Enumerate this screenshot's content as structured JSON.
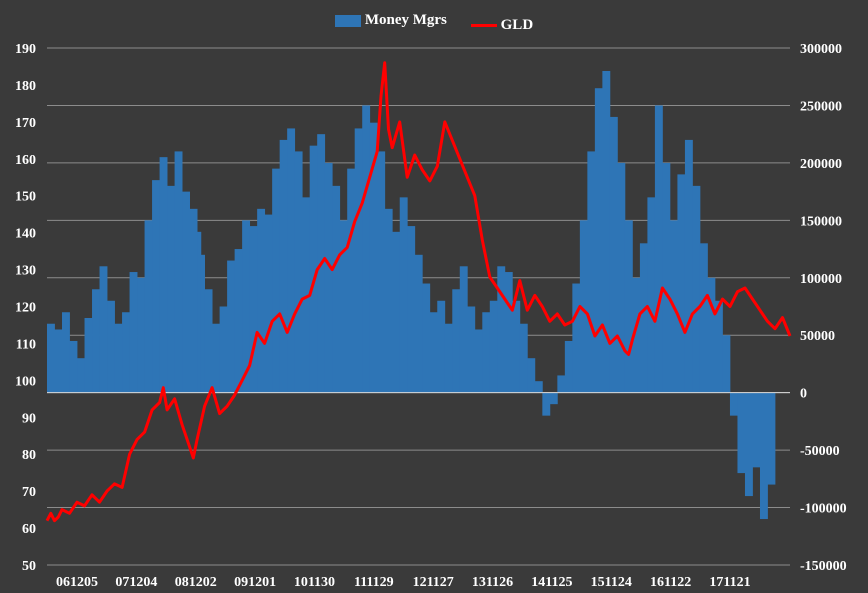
{
  "chart_data": {
    "type": "bar+line",
    "legend": [
      {
        "name": "Money Mgrs",
        "kind": "bar",
        "color": "#2e75b6"
      },
      {
        "name": "GLD",
        "kind": "line",
        "color": "#ff0000"
      }
    ],
    "left_axis": {
      "min": 50,
      "max": 190,
      "ticks": [
        "50",
        "60",
        "70",
        "80",
        "90",
        "100",
        "110",
        "120",
        "130",
        "140",
        "150",
        "160",
        "170",
        "180",
        "190"
      ]
    },
    "right_axis": {
      "min": -150000,
      "max": 300000,
      "ticks": [
        "-150000",
        "-100000",
        "-50000",
        "0",
        "50000",
        "100000",
        "150000",
        "200000",
        "250000",
        "300000"
      ]
    },
    "x_tick_labels": [
      "061205",
      "071204",
      "081202",
      "091201",
      "101130",
      "111129",
      "121127",
      "131126",
      "141125",
      "151124",
      "161122",
      "171121"
    ],
    "series": [
      {
        "name": "Money Mgrs",
        "axis": "right",
        "points": [
          [
            0,
            60000
          ],
          [
            2,
            55000
          ],
          [
            4,
            70000
          ],
          [
            6,
            45000
          ],
          [
            8,
            30000
          ],
          [
            10,
            65000
          ],
          [
            12,
            90000
          ],
          [
            14,
            110000
          ],
          [
            16,
            80000
          ],
          [
            18,
            60000
          ],
          [
            20,
            70000
          ],
          [
            22,
            105000
          ],
          [
            24,
            100000
          ],
          [
            26,
            150000
          ],
          [
            28,
            185000
          ],
          [
            30,
            205000
          ],
          [
            32,
            180000
          ],
          [
            34,
            210000
          ],
          [
            36,
            175000
          ],
          [
            38,
            160000
          ],
          [
            40,
            140000
          ],
          [
            41,
            120000
          ],
          [
            42,
            90000
          ],
          [
            44,
            60000
          ],
          [
            46,
            75000
          ],
          [
            48,
            115000
          ],
          [
            50,
            125000
          ],
          [
            52,
            150000
          ],
          [
            54,
            145000
          ],
          [
            56,
            160000
          ],
          [
            58,
            155000
          ],
          [
            60,
            195000
          ],
          [
            62,
            220000
          ],
          [
            64,
            230000
          ],
          [
            66,
            210000
          ],
          [
            68,
            170000
          ],
          [
            70,
            215000
          ],
          [
            72,
            225000
          ],
          [
            74,
            200000
          ],
          [
            76,
            180000
          ],
          [
            78,
            150000
          ],
          [
            80,
            195000
          ],
          [
            82,
            230000
          ],
          [
            84,
            250000
          ],
          [
            86,
            235000
          ],
          [
            88,
            210000
          ],
          [
            90,
            160000
          ],
          [
            92,
            140000
          ],
          [
            94,
            170000
          ],
          [
            96,
            145000
          ],
          [
            98,
            120000
          ],
          [
            100,
            95000
          ],
          [
            102,
            70000
          ],
          [
            104,
            80000
          ],
          [
            106,
            60000
          ],
          [
            108,
            90000
          ],
          [
            110,
            110000
          ],
          [
            112,
            75000
          ],
          [
            114,
            55000
          ],
          [
            116,
            70000
          ],
          [
            118,
            80000
          ],
          [
            120,
            110000
          ],
          [
            122,
            105000
          ],
          [
            124,
            80000
          ],
          [
            126,
            60000
          ],
          [
            128,
            30000
          ],
          [
            130,
            10000
          ],
          [
            132,
            -20000
          ],
          [
            134,
            -10000
          ],
          [
            136,
            15000
          ],
          [
            138,
            45000
          ],
          [
            140,
            95000
          ],
          [
            142,
            150000
          ],
          [
            144,
            210000
          ],
          [
            146,
            265000
          ],
          [
            148,
            280000
          ],
          [
            150,
            240000
          ],
          [
            152,
            200000
          ],
          [
            154,
            150000
          ],
          [
            156,
            100000
          ],
          [
            158,
            130000
          ],
          [
            160,
            170000
          ],
          [
            162,
            250000
          ],
          [
            164,
            200000
          ],
          [
            166,
            150000
          ],
          [
            168,
            190000
          ],
          [
            170,
            220000
          ],
          [
            172,
            180000
          ],
          [
            174,
            130000
          ],
          [
            176,
            100000
          ],
          [
            178,
            80000
          ],
          [
            180,
            50000
          ],
          [
            182,
            -20000
          ],
          [
            184,
            -70000
          ],
          [
            186,
            -90000
          ],
          [
            188,
            -65000
          ],
          [
            190,
            -110000
          ],
          [
            192,
            -80000
          ]
        ]
      },
      {
        "name": "GLD",
        "axis": "left",
        "points": [
          [
            0,
            62
          ],
          [
            1,
            64
          ],
          [
            2,
            62
          ],
          [
            3,
            63
          ],
          [
            4,
            65
          ],
          [
            6,
            64
          ],
          [
            8,
            67
          ],
          [
            10,
            66
          ],
          [
            12,
            69
          ],
          [
            14,
            67
          ],
          [
            16,
            70
          ],
          [
            18,
            72
          ],
          [
            20,
            71
          ],
          [
            22,
            80
          ],
          [
            24,
            84
          ],
          [
            26,
            86
          ],
          [
            28,
            92
          ],
          [
            30,
            94
          ],
          [
            31,
            98
          ],
          [
            32,
            92
          ],
          [
            34,
            95
          ],
          [
            36,
            88
          ],
          [
            38,
            82
          ],
          [
            39,
            79
          ],
          [
            40,
            84
          ],
          [
            42,
            93
          ],
          [
            44,
            98
          ],
          [
            46,
            91
          ],
          [
            48,
            93
          ],
          [
            50,
            96
          ],
          [
            52,
            100
          ],
          [
            54,
            104
          ],
          [
            56,
            113
          ],
          [
            58,
            110
          ],
          [
            60,
            116
          ],
          [
            62,
            118
          ],
          [
            64,
            113
          ],
          [
            66,
            118
          ],
          [
            68,
            122
          ],
          [
            70,
            123
          ],
          [
            72,
            130
          ],
          [
            74,
            133
          ],
          [
            76,
            130
          ],
          [
            78,
            134
          ],
          [
            80,
            136
          ],
          [
            82,
            143
          ],
          [
            84,
            148
          ],
          [
            86,
            155
          ],
          [
            88,
            162
          ],
          [
            89,
            177
          ],
          [
            90,
            186
          ],
          [
            91,
            168
          ],
          [
            92,
            163
          ],
          [
            94,
            170
          ],
          [
            96,
            155
          ],
          [
            98,
            161
          ],
          [
            100,
            157
          ],
          [
            102,
            154
          ],
          [
            104,
            158
          ],
          [
            106,
            170
          ],
          [
            108,
            165
          ],
          [
            110,
            160
          ],
          [
            112,
            155
          ],
          [
            114,
            150
          ],
          [
            116,
            138
          ],
          [
            118,
            128
          ],
          [
            120,
            125
          ],
          [
            122,
            122
          ],
          [
            124,
            119
          ],
          [
            126,
            127
          ],
          [
            128,
            119
          ],
          [
            130,
            123
          ],
          [
            132,
            120
          ],
          [
            134,
            116
          ],
          [
            136,
            118
          ],
          [
            138,
            115
          ],
          [
            140,
            116
          ],
          [
            142,
            120
          ],
          [
            144,
            118
          ],
          [
            146,
            112
          ],
          [
            148,
            115
          ],
          [
            150,
            110
          ],
          [
            152,
            112
          ],
          [
            154,
            108
          ],
          [
            155,
            107
          ],
          [
            156,
            111
          ],
          [
            158,
            118
          ],
          [
            160,
            120
          ],
          [
            162,
            116
          ],
          [
            164,
            125
          ],
          [
            166,
            122
          ],
          [
            168,
            118
          ],
          [
            170,
            113
          ],
          [
            172,
            118
          ],
          [
            174,
            120
          ],
          [
            176,
            123
          ],
          [
            178,
            118
          ],
          [
            180,
            122
          ],
          [
            182,
            120
          ],
          [
            184,
            124
          ],
          [
            186,
            125
          ],
          [
            188,
            122
          ],
          [
            190,
            119
          ],
          [
            192,
            116
          ],
          [
            194,
            114
          ],
          [
            196,
            117
          ],
          [
            198,
            112
          ]
        ]
      }
    ]
  }
}
